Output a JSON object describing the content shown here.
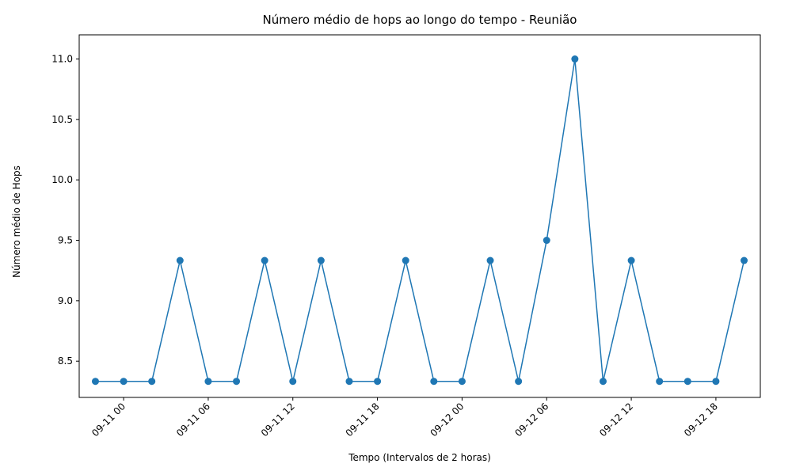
{
  "chart_data": {
    "type": "line",
    "title": "Número médio de hops ao longo do tempo - Reunião",
    "xlabel": "Tempo (Intervalos de 2 horas)",
    "ylabel": "Número médio de Hops",
    "x": [
      "09-10 22:00",
      "09-11 00:00",
      "09-11 02:00",
      "09-11 04:00",
      "09-11 06:00",
      "09-11 08:00",
      "09-11 10:00",
      "09-11 12:00",
      "09-11 14:00",
      "09-11 16:00",
      "09-11 18:00",
      "09-11 20:00",
      "09-11 22:00",
      "09-12 00:00",
      "09-12 02:00",
      "09-12 04:00",
      "09-12 06:00",
      "09-12 08:00",
      "09-12 10:00",
      "09-12 12:00",
      "09-12 14:00",
      "09-12 16:00",
      "09-12 18:00",
      "09-12 20:00"
    ],
    "series": [
      {
        "values": [
          8.333,
          8.333,
          8.333,
          9.333,
          8.333,
          8.333,
          9.333,
          8.333,
          9.333,
          8.333,
          8.333,
          9.333,
          8.333,
          8.333,
          9.333,
          8.333,
          9.5,
          11.0,
          8.333,
          9.333,
          8.333,
          8.333,
          8.333,
          9.333
        ]
      }
    ],
    "xticks": [
      "09-11 00",
      "09-11 06",
      "09-11 12",
      "09-11 18",
      "09-12 00",
      "09-12 06",
      "09-12 12",
      "09-12 18"
    ],
    "xtick_positions": [
      "09-11 00:00",
      "09-11 06:00",
      "09-11 12:00",
      "09-11 18:00",
      "09-12 00:00",
      "09-12 06:00",
      "09-12 12:00",
      "09-12 18:00"
    ],
    "xlim": [
      "09-10 20:51",
      "09-12 21:09"
    ],
    "yticks": [
      "8.5",
      "9.0",
      "9.5",
      "10.0",
      "10.5",
      "11.0"
    ],
    "ylim": [
      8.2,
      11.2
    ],
    "grid": false,
    "legend": "none",
    "colors": {
      "line": "#1f77b4",
      "marker": "#1f77b4",
      "axis": "#000000"
    }
  }
}
